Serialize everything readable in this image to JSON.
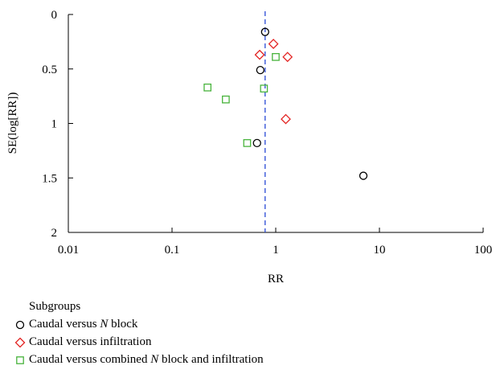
{
  "chart_data": {
    "type": "scatter",
    "xscale": "log",
    "xlabel": "RR",
    "ylabel": "SE(log[RR])",
    "xlim": [
      0.01,
      100
    ],
    "ylim": [
      0,
      2
    ],
    "y_inverted": true,
    "xticks": [
      {
        "value": 0.01,
        "label": "0.01"
      },
      {
        "value": 0.1,
        "label": "0.1"
      },
      {
        "value": 1,
        "label": "1"
      },
      {
        "value": 10,
        "label": "10"
      },
      {
        "value": 100,
        "label": "100"
      }
    ],
    "yticks": [
      {
        "value": 0,
        "label": "0"
      },
      {
        "value": 0.5,
        "label": "0.5"
      },
      {
        "value": 1,
        "label": "1"
      },
      {
        "value": 1.5,
        "label": "1.5"
      },
      {
        "value": 2,
        "label": "2"
      }
    ],
    "reference_line": {
      "x": 0.79,
      "style": "dashed",
      "color": "#2b4bd6"
    },
    "series": [
      {
        "key": "nblock",
        "marker": "circle",
        "color": "#000000",
        "points": [
          {
            "x": 0.79,
            "y": 0.16
          },
          {
            "x": 0.71,
            "y": 0.51
          },
          {
            "x": 0.66,
            "y": 1.18
          },
          {
            "x": 7.0,
            "y": 1.48
          }
        ]
      },
      {
        "key": "infiltration",
        "marker": "diamond",
        "color": "#e32322",
        "points": [
          {
            "x": 0.95,
            "y": 0.27
          },
          {
            "x": 0.7,
            "y": 0.37
          },
          {
            "x": 1.3,
            "y": 0.39
          },
          {
            "x": 1.25,
            "y": 0.96
          }
        ]
      },
      {
        "key": "combined",
        "marker": "square",
        "color": "#48b33c",
        "points": [
          {
            "x": 1.0,
            "y": 0.39
          },
          {
            "x": 0.22,
            "y": 0.67
          },
          {
            "x": 0.77,
            "y": 0.68
          },
          {
            "x": 0.33,
            "y": 0.78
          },
          {
            "x": 0.53,
            "y": 1.18
          }
        ]
      }
    ],
    "legend": {
      "title": "Subgroups",
      "placement": "bottom-left",
      "entries": [
        {
          "marker": "circle",
          "color": "#000000",
          "text_before": "Caudal versus ",
          "italic": "N",
          "text_after": " block"
        },
        {
          "marker": "diamond",
          "color": "#e32322",
          "text_before": "Caudal versus infiltration",
          "italic": "",
          "text_after": ""
        },
        {
          "marker": "square",
          "color": "#48b33c",
          "text_before": "Caudal versus combined ",
          "italic": "N",
          "text_after": " block and infiltration"
        }
      ]
    }
  }
}
